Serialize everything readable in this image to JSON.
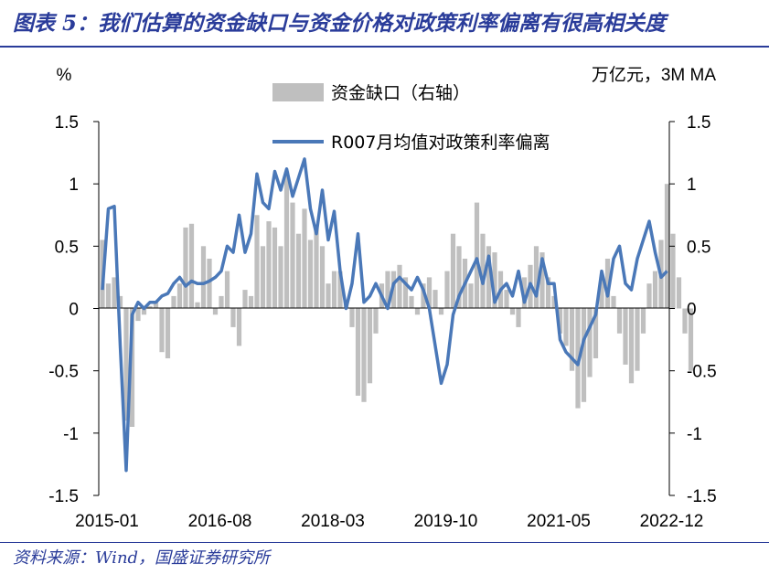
{
  "header": {
    "title": "图表 5：我们估算的资金缺口与资金价格对政策利率偏离有很高相关度"
  },
  "footer": {
    "source": "资料来源：Wind，国盛证券研究所"
  },
  "chart_data": {
    "type": "bar+line",
    "title": "",
    "left_unit": "%",
    "right_unit": "万亿元，3M MA",
    "ylim_left": [
      -1.5,
      1.5
    ],
    "ylim_right": [
      -1.5,
      1.5
    ],
    "y_ticks_left": [
      "1.5",
      "1",
      "0.5",
      "0",
      "-0.5",
      "-1",
      "-1.5"
    ],
    "y_ticks_right": [
      "1.5",
      "1",
      "0.5",
      "0",
      "-0.5",
      "-1",
      "-1.5"
    ],
    "x_ticks": [
      "2015-01",
      "2016-08",
      "2018-03",
      "2019-10",
      "2021-05",
      "2022-12"
    ],
    "x_start": "2015-01",
    "legend": {
      "position": "top-center",
      "bar_label": "资金缺口（右轴）",
      "line_label": "R007月均值对政策利率偏离"
    },
    "colors": {
      "bar": "#bfbfbf",
      "line": "#4a78b8",
      "title": "#2a3c9a"
    },
    "grid": false,
    "series": [
      {
        "name": "资金缺口（右轴）",
        "axis": "right",
        "kind": "bar",
        "values": [
          0.55,
          0.2,
          0.25,
          0.1,
          -0.9,
          -0.95,
          -0.1,
          -0.05,
          0.02,
          0.05,
          -0.35,
          -0.4,
          0.1,
          0.2,
          0.65,
          0.68,
          0.05,
          0.5,
          0.4,
          -0.05,
          0.1,
          0.3,
          -0.15,
          -0.3,
          0.15,
          0.1,
          0.75,
          0.5,
          0.7,
          0.65,
          0.5,
          1.1,
          0.85,
          0.6,
          0.8,
          0.55,
          0.65,
          0.5,
          0.2,
          0.3,
          0.3,
          0.05,
          -0.15,
          -0.7,
          -0.75,
          -0.6,
          -0.2,
          0.2,
          0.3,
          0.3,
          0.35,
          0.25,
          0.1,
          -0.05,
          0.2,
          0.25,
          0.15,
          -0.05,
          0.3,
          0.6,
          0.5,
          0.4,
          0.2,
          0.85,
          0.6,
          0.5,
          0.45,
          0.3,
          0.15,
          -0.05,
          -0.15,
          0.25,
          0.35,
          0.5,
          0.45,
          0.25,
          0.1,
          -0.2,
          -0.3,
          -0.5,
          -0.8,
          -0.75,
          -0.55,
          -0.4,
          0.25,
          0.4,
          0.1,
          -0.2,
          -0.45,
          -0.6,
          -0.5,
          -0.2,
          0.2,
          0.3,
          0.55,
          1.0,
          0.6,
          0.25,
          -0.2,
          -0.5
        ]
      },
      {
        "name": "R007月均值对政策利率偏离",
        "axis": "left",
        "kind": "line",
        "values": [
          0.15,
          0.8,
          0.82,
          -0.3,
          -1.3,
          -0.05,
          0.05,
          0.0,
          0.05,
          0.05,
          0.1,
          0.12,
          0.2,
          0.25,
          0.18,
          0.22,
          0.2,
          0.2,
          0.22,
          0.25,
          0.3,
          0.5,
          0.45,
          0.75,
          0.45,
          0.6,
          1.08,
          0.85,
          0.8,
          1.1,
          0.95,
          1.12,
          0.9,
          1.05,
          1.2,
          0.8,
          0.6,
          0.95,
          0.55,
          0.78,
          0.3,
          0.0,
          0.2,
          0.6,
          0.05,
          0.1,
          0.2,
          0.1,
          0.0,
          0.2,
          0.25,
          0.2,
          0.15,
          0.25,
          0.15,
          0.0,
          -0.3,
          -0.6,
          -0.45,
          -0.05,
          0.1,
          0.2,
          0.3,
          0.4,
          0.2,
          0.42,
          0.05,
          0.15,
          0.2,
          0.1,
          0.3,
          0.05,
          0.2,
          0.1,
          0.4,
          0.2,
          0.2,
          -0.25,
          -0.35,
          -0.4,
          -0.45,
          -0.25,
          -0.15,
          -0.05,
          0.3,
          0.1,
          0.4,
          0.5,
          0.2,
          0.15,
          0.4,
          0.55,
          0.7,
          0.45,
          0.25,
          0.3
        ]
      }
    ]
  }
}
